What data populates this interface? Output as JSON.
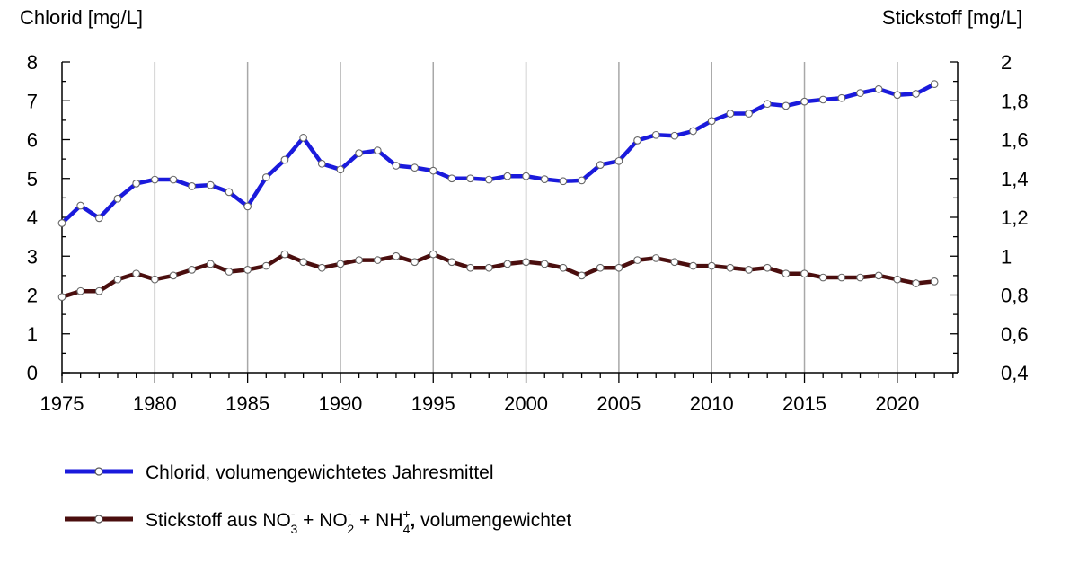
{
  "chart_data": {
    "type": "line",
    "y_left_label": "Chlorid [mg/L]",
    "y_right_label": "Stickstoff [mg/L]",
    "x_range": [
      1975,
      2022
    ],
    "x_ticks": [
      "1975",
      "1980",
      "1985",
      "1990",
      "1995",
      "2000",
      "2005",
      "2010",
      "2015",
      "2020"
    ],
    "y_left_range": [
      0,
      8
    ],
    "y_left_ticks": [
      "0",
      "1",
      "2",
      "3",
      "4",
      "5",
      "6",
      "7",
      "8"
    ],
    "y_right_range": [
      0.4,
      2
    ],
    "y_right_ticks": [
      "0,4",
      "0,6",
      "0,8",
      "1",
      "1,2",
      "1,4",
      "1,6",
      "1,8",
      "2"
    ],
    "grid": "vertical",
    "series": [
      {
        "name": "Chlorid, volumengewichtetes Jahresmittel",
        "axis": "left",
        "color": "#1a1adc",
        "x": [
          1975,
          1976,
          1977,
          1978,
          1979,
          1980,
          1981,
          1982,
          1983,
          1984,
          1985,
          1986,
          1987,
          1988,
          1989,
          1990,
          1991,
          1992,
          1993,
          1994,
          1995,
          1996,
          1997,
          1998,
          1999,
          2000,
          2001,
          2002,
          2003,
          2004,
          2005,
          2006,
          2007,
          2008,
          2009,
          2010,
          2011,
          2012,
          2013,
          2014,
          2015,
          2016,
          2017,
          2018,
          2019,
          2020,
          2021,
          2022
        ],
        "values": [
          3.85,
          4.3,
          3.98,
          4.48,
          4.87,
          4.97,
          4.97,
          4.8,
          4.83,
          4.65,
          4.28,
          5.03,
          5.48,
          6.05,
          5.38,
          5.23,
          5.65,
          5.72,
          5.33,
          5.28,
          5.2,
          5.0,
          5.0,
          4.97,
          5.06,
          5.06,
          4.98,
          4.93,
          4.95,
          5.35,
          5.45,
          5.98,
          6.12,
          6.1,
          6.22,
          6.48,
          6.67,
          6.67,
          6.92,
          6.87,
          6.98,
          7.03,
          7.07,
          7.2,
          7.3,
          7.15,
          7.18,
          7.43
        ]
      },
      {
        "name_parts": {
          "prefix": "Stickstoff aus NO",
          "s1": "-",
          "b1": "3",
          "mid1": " + NO",
          "s2": "-",
          "b2": "2",
          "mid2": " + NH",
          "s3": "+",
          "b3": "4",
          "suffix": ",",
          "tail": "  volumengewichtet"
        },
        "axis": "right",
        "color": "#4a0e0e",
        "x": [
          1975,
          1976,
          1977,
          1978,
          1979,
          1980,
          1981,
          1982,
          1983,
          1984,
          1985,
          1986,
          1987,
          1988,
          1989,
          1990,
          1991,
          1992,
          1993,
          1994,
          1995,
          1996,
          1997,
          1998,
          1999,
          2000,
          2001,
          2002,
          2003,
          2004,
          2005,
          2006,
          2007,
          2008,
          2009,
          2010,
          2011,
          2012,
          2013,
          2014,
          2015,
          2016,
          2017,
          2018,
          2019,
          2020,
          2021,
          2022
        ],
        "values": [
          0.79,
          0.82,
          0.82,
          0.88,
          0.91,
          0.88,
          0.9,
          0.93,
          0.96,
          0.92,
          0.93,
          0.95,
          1.01,
          0.97,
          0.94,
          0.96,
          0.98,
          0.98,
          1.0,
          0.97,
          1.01,
          0.97,
          0.94,
          0.94,
          0.96,
          0.97,
          0.96,
          0.94,
          0.9,
          0.94,
          0.94,
          0.98,
          0.99,
          0.97,
          0.95,
          0.95,
          0.94,
          0.93,
          0.94,
          0.91,
          0.91,
          0.89,
          0.89,
          0.89,
          0.9,
          0.88,
          0.86,
          0.87
        ]
      }
    ],
    "legend_position": "bottom-left"
  }
}
